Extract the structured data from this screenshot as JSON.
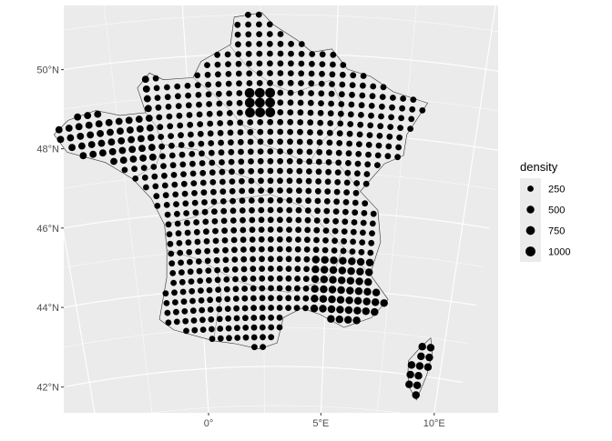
{
  "chart_data": {
    "type": "map",
    "projection": "conic",
    "xlim": [
      -5,
      10
    ],
    "ylim": [
      41,
      51
    ],
    "x_ticks": [
      {
        "value": 0,
        "label": "0°"
      },
      {
        "value": 5,
        "label": "5°E"
      },
      {
        "value": 10,
        "label": "10°E"
      }
    ],
    "y_ticks": [
      {
        "value": 42,
        "label": "42°N"
      },
      {
        "value": 44,
        "label": "44°N"
      },
      {
        "value": 46,
        "label": "46°N"
      },
      {
        "value": 48,
        "label": "48°N"
      },
      {
        "value": 50,
        "label": "50°N"
      }
    ],
    "grid": true,
    "legend": {
      "title": "density",
      "placement": "right",
      "entries": [
        {
          "label": "250",
          "value": 250
        },
        {
          "label": "500",
          "value": 500
        },
        {
          "label": "750",
          "value": 750
        },
        {
          "label": "1000",
          "value": 1000
        }
      ]
    },
    "point_grid_spacing_deg": 0.25,
    "dense_zone": {
      "lon": [
        1.9,
        2.9
      ],
      "lat": [
        48.45,
        49.15
      ],
      "density": 1000
    },
    "base_density": 250,
    "mid_density": 500,
    "regions": [
      {
        "name": "mainland",
        "outline": [
          [
            2.55,
            51.05
          ],
          [
            2.9,
            50.75
          ],
          [
            3.7,
            50.35
          ],
          [
            4.2,
            50.05
          ],
          [
            4.85,
            50.15
          ],
          [
            5.4,
            49.65
          ],
          [
            6.2,
            49.5
          ],
          [
            7.0,
            49.15
          ],
          [
            8.2,
            48.95
          ],
          [
            7.6,
            48.1
          ],
          [
            7.55,
            47.55
          ],
          [
            6.9,
            47.3
          ],
          [
            6.1,
            46.55
          ],
          [
            6.8,
            46.1
          ],
          [
            7.0,
            45.3
          ],
          [
            6.7,
            44.45
          ],
          [
            7.5,
            43.85
          ],
          [
            6.9,
            43.35
          ],
          [
            5.8,
            43.05
          ],
          [
            4.8,
            43.35
          ],
          [
            4.05,
            43.5
          ],
          [
            3.3,
            43.25
          ],
          [
            3.05,
            42.6
          ],
          [
            2.3,
            42.45
          ],
          [
            1.3,
            42.6
          ],
          [
            0.4,
            42.7
          ],
          [
            -1.2,
            43.05
          ],
          [
            -1.75,
            43.35
          ],
          [
            -1.3,
            44.4
          ],
          [
            -1.2,
            45.1
          ],
          [
            -1.2,
            45.75
          ],
          [
            -1.6,
            46.45
          ],
          [
            -2.2,
            47.0
          ],
          [
            -3.1,
            47.5
          ],
          [
            -4.4,
            47.9
          ],
          [
            -4.75,
            48.4
          ],
          [
            -4.2,
            48.7
          ],
          [
            -3.2,
            48.85
          ],
          [
            -2.4,
            48.65
          ],
          [
            -1.5,
            48.65
          ],
          [
            -1.7,
            49.3
          ],
          [
            -1.25,
            49.65
          ],
          [
            -0.8,
            49.45
          ],
          [
            0.2,
            49.45
          ],
          [
            0.5,
            49.85
          ],
          [
            1.5,
            50.25
          ],
          [
            1.65,
            50.95
          ],
          [
            2.55,
            51.05
          ]
        ]
      },
      {
        "name": "corsica",
        "outline": [
          [
            9.4,
            43.0
          ],
          [
            9.55,
            42.6
          ],
          [
            9.45,
            42.05
          ],
          [
            9.25,
            41.6
          ],
          [
            9.15,
            41.38
          ],
          [
            8.8,
            41.65
          ],
          [
            8.65,
            41.95
          ],
          [
            8.6,
            42.35
          ],
          [
            9.0,
            42.7
          ],
          [
            9.4,
            43.0
          ]
        ]
      }
    ],
    "interior_boundaries": [
      [
        [
          -1.5,
          48.65
        ],
        [
          -1.2,
          48.3
        ],
        [
          -1.0,
          47.8
        ],
        [
          -1.3,
          47.3
        ],
        [
          -2.2,
          47.0
        ]
      ],
      [
        [
          1.45,
          50.25
        ],
        [
          2.0,
          49.7
        ],
        [
          2.9,
          49.2
        ],
        [
          3.6,
          49.0
        ],
        [
          4.85,
          49.35
        ]
      ],
      [
        [
          0.2,
          49.45
        ],
        [
          0.8,
          49.05
        ],
        [
          1.45,
          48.55
        ],
        [
          1.8,
          48.2
        ],
        [
          2.3,
          48.05
        ]
      ],
      [
        [
          4.85,
          49.35
        ],
        [
          5.3,
          48.7
        ],
        [
          5.2,
          48.2
        ],
        [
          4.6,
          47.75
        ],
        [
          4.2,
          47.2
        ]
      ],
      [
        [
          -1.0,
          47.8
        ],
        [
          0.2,
          47.6
        ],
        [
          1.0,
          47.1
        ],
        [
          2.1,
          46.8
        ],
        [
          2.8,
          46.4
        ]
      ],
      [
        [
          1.8,
          48.2
        ],
        [
          2.5,
          47.7
        ],
        [
          3.2,
          47.5
        ],
        [
          4.2,
          47.2
        ],
        [
          5.2,
          47.25
        ],
        [
          6.1,
          46.55
        ]
      ],
      [
        [
          -1.2,
          45.75
        ],
        [
          0.0,
          45.9
        ],
        [
          0.8,
          46.2
        ],
        [
          1.6,
          46.3
        ],
        [
          2.8,
          46.4
        ],
        [
          4.0,
          46.1
        ],
        [
          4.8,
          45.6
        ],
        [
          5.6,
          45.1
        ],
        [
          6.7,
          44.45
        ]
      ],
      [
        [
          -1.2,
          45.1
        ],
        [
          0.0,
          44.8
        ],
        [
          0.7,
          44.5
        ],
        [
          1.5,
          44.2
        ],
        [
          2.4,
          44.0
        ],
        [
          3.5,
          43.9
        ],
        [
          4.4,
          44.1
        ],
        [
          4.9,
          44.2
        ]
      ],
      [
        [
          4.9,
          44.2
        ],
        [
          5.3,
          44.5
        ],
        [
          5.6,
          45.1
        ]
      ],
      [
        [
          0.4,
          42.7
        ],
        [
          0.6,
          43.3
        ],
        [
          0.8,
          43.8
        ],
        [
          0.7,
          44.5
        ]
      ]
    ]
  }
}
